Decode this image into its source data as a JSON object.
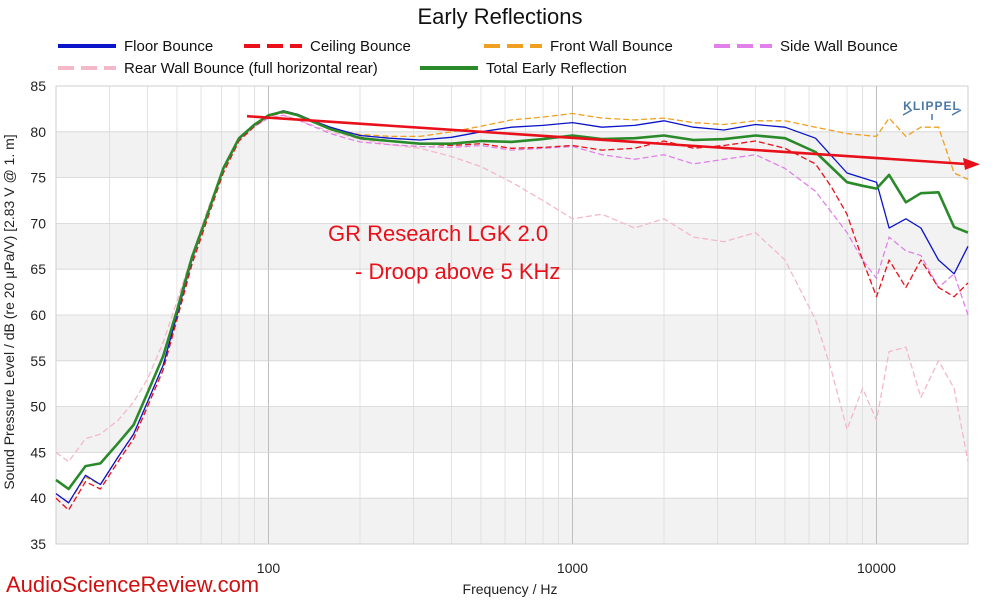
{
  "chart_data": {
    "type": "line",
    "title": "Early Reflections",
    "xlabel": "Frequency / Hz",
    "ylabel": "Sound Pressure Level / dB (re 20 µPa/V)  [2.83  V @ 1. m]",
    "x_scale": "log",
    "xlim": [
      20,
      20000
    ],
    "ylim": [
      35,
      85
    ],
    "xticks": [
      100,
      1000,
      10000
    ],
    "xtick_labels": [
      "100",
      "1000",
      "10000"
    ],
    "yticks": [
      35,
      40,
      45,
      50,
      55,
      60,
      65,
      70,
      75,
      80,
      85
    ],
    "ytick_labels": [
      "35",
      "40",
      "45",
      "50",
      "55",
      "60",
      "65",
      "70",
      "75",
      "80",
      "85"
    ],
    "grid": true,
    "legend_position": "top",
    "series": [
      {
        "name": "Floor Bounce",
        "color": "#0a14c8",
        "dash": "solid",
        "x": [
          20,
          22,
          25,
          28,
          32,
          36,
          40,
          45,
          50,
          56,
          63,
          71,
          80,
          90,
          100,
          112,
          125,
          140,
          160,
          180,
          200,
          250,
          315,
          400,
          500,
          630,
          800,
          1000,
          1250,
          1600,
          2000,
          2500,
          3150,
          4000,
          5000,
          6300,
          8000,
          10000,
          11000,
          12500,
          14000,
          16000,
          18000,
          20000
        ],
        "y": [
          40.5,
          39.5,
          42.5,
          41.5,
          44.5,
          47,
          50.5,
          54.5,
          60,
          66,
          71,
          76,
          79.2,
          80.8,
          81.8,
          82.3,
          81.9,
          81.2,
          80.5,
          80,
          79.6,
          79.3,
          79.1,
          79.4,
          80,
          80.5,
          80.7,
          81,
          80.5,
          80.7,
          81.2,
          80.5,
          80.2,
          80.8,
          80.5,
          79.3,
          75.5,
          74.5,
          69.5,
          70.5,
          69.5,
          66,
          64.5,
          67.5
        ]
      },
      {
        "name": "Ceiling Bounce",
        "color": "#e8101a",
        "dash": "dash",
        "x": [
          20,
          22,
          25,
          28,
          32,
          36,
          40,
          45,
          50,
          56,
          63,
          71,
          80,
          90,
          100,
          112,
          125,
          140,
          160,
          180,
          200,
          250,
          315,
          400,
          500,
          630,
          800,
          1000,
          1250,
          1600,
          2000,
          2500,
          3150,
          4000,
          5000,
          6300,
          7100,
          8000,
          9000,
          10000,
          11000,
          12500,
          14000,
          16000,
          18000,
          20000
        ],
        "y": [
          40,
          38.7,
          41.8,
          41,
          44,
          46.5,
          50,
          54,
          59.5,
          65.5,
          70.5,
          75.5,
          79,
          80.6,
          81.7,
          82.1,
          81.8,
          81.1,
          80.3,
          79.8,
          79.4,
          79,
          78.7,
          78.5,
          78.7,
          78.2,
          78.3,
          78.5,
          78,
          78.2,
          79,
          78.2,
          78.5,
          79,
          78.2,
          76.5,
          74,
          71,
          66,
          62,
          66,
          63,
          66,
          63,
          62,
          63.5
        ]
      },
      {
        "name": "Front Wall Bounce",
        "color": "#f0a020",
        "dash": "dash",
        "x": [
          20,
          22,
          25,
          28,
          32,
          36,
          40,
          45,
          50,
          56,
          63,
          71,
          80,
          90,
          100,
          112,
          125,
          140,
          160,
          180,
          200,
          250,
          315,
          400,
          500,
          630,
          800,
          1000,
          1250,
          1600,
          2000,
          2500,
          3150,
          4000,
          5000,
          6300,
          8000,
          10000,
          11000,
          12500,
          14000,
          16000,
          18000,
          20000
        ],
        "y": [
          40.5,
          39.5,
          42.3,
          41.5,
          44.5,
          47,
          50.5,
          54.5,
          60,
          66,
          71,
          76,
          79.2,
          80.8,
          81.8,
          82.3,
          81.9,
          81.2,
          80.5,
          80,
          79.7,
          79.5,
          79.5,
          80,
          80.6,
          81.3,
          81.6,
          82,
          81.5,
          81.3,
          81.5,
          81,
          80.8,
          81.2,
          81.2,
          80.5,
          79.8,
          79.5,
          81.5,
          79.5,
          80.5,
          80.5,
          75.5,
          74.8
        ]
      },
      {
        "name": "Side Wall Bounce",
        "color": "#e080e8",
        "dash": "dash",
        "x": [
          20,
          22,
          25,
          28,
          32,
          36,
          40,
          45,
          50,
          56,
          63,
          71,
          80,
          90,
          100,
          112,
          125,
          140,
          160,
          180,
          200,
          250,
          315,
          400,
          500,
          630,
          800,
          1000,
          1250,
          1600,
          2000,
          2500,
          3150,
          4000,
          5000,
          6300,
          8000,
          9000,
          10000,
          11000,
          12500,
          14000,
          16000,
          18000,
          20000
        ],
        "y": [
          40.5,
          39.5,
          42.3,
          41.5,
          44.5,
          47,
          50.5,
          54.5,
          60,
          66,
          71,
          76,
          79.2,
          80.6,
          81.5,
          81.8,
          81.3,
          80.6,
          79.8,
          79.3,
          78.9,
          78.6,
          78.4,
          78.3,
          78.5,
          78,
          78.2,
          78.4,
          77.5,
          77,
          77.5,
          76.5,
          77,
          77.5,
          76,
          73.5,
          69,
          66,
          64,
          68.5,
          67,
          66.5,
          63,
          64.5,
          60
        ]
      },
      {
        "name": "Rear Wall Bounce (full horizontal rear)",
        "color": "#f4b8c8",
        "dash": "dash",
        "x": [
          20,
          22,
          25,
          28,
          32,
          36,
          40,
          45,
          50,
          56,
          63,
          71,
          80,
          90,
          100,
          112,
          125,
          140,
          160,
          180,
          200,
          250,
          315,
          400,
          500,
          630,
          800,
          1000,
          1250,
          1600,
          2000,
          2500,
          3150,
          4000,
          5000,
          6300,
          7100,
          8000,
          9000,
          10000,
          11000,
          12500,
          14000,
          16000,
          18000,
          20000
        ],
        "y": [
          45,
          44,
          46.5,
          47,
          48.5,
          50.5,
          53,
          57,
          61.5,
          66.5,
          71.5,
          76,
          79,
          80.6,
          81.5,
          81.8,
          81.3,
          80.7,
          80,
          79.6,
          79.2,
          78.6,
          78.2,
          77.3,
          76.2,
          74.5,
          72.5,
          70.5,
          71,
          69.5,
          70.5,
          68.5,
          68,
          69,
          66,
          59.5,
          54,
          47.5,
          52,
          48.5,
          56,
          56.5,
          51,
          55,
          52,
          44
        ]
      },
      {
        "name": "Total Early Reflection",
        "color": "#2a8a2a",
        "dash": "solid",
        "x": [
          20,
          22,
          25,
          28,
          32,
          36,
          40,
          45,
          50,
          56,
          63,
          71,
          80,
          90,
          100,
          112,
          125,
          140,
          160,
          180,
          200,
          250,
          315,
          400,
          500,
          630,
          800,
          1000,
          1250,
          1600,
          2000,
          2500,
          3150,
          4000,
          5000,
          6300,
          8000,
          9000,
          10000,
          11000,
          12500,
          14000,
          16000,
          18000,
          20000
        ],
        "y": [
          42,
          41,
          43.5,
          43.8,
          46,
          48,
          51.5,
          55.5,
          60.5,
          66.3,
          71,
          76,
          79.3,
          80.8,
          81.8,
          82.2,
          81.8,
          81.1,
          80.3,
          79.8,
          79.3,
          79,
          78.7,
          78.7,
          79,
          78.9,
          79.2,
          79.6,
          79.2,
          79.3,
          79.6,
          79.1,
          79.2,
          79.6,
          79.3,
          77.8,
          74.5,
          74.1,
          73.8,
          75.3,
          72.3,
          73.3,
          73.4,
          69.6,
          69
        ]
      }
    ],
    "trend_line": {
      "color": "#e8101a",
      "x": [
        85,
        22000
      ],
      "y": [
        81.7,
        76.5
      ]
    },
    "annotations": [
      "GR Research LGK 2.0",
      "- Droop above 5 KHz"
    ],
    "watermark": "AudioScienceReview.com",
    "brand_logo": "KLIPPEL"
  }
}
